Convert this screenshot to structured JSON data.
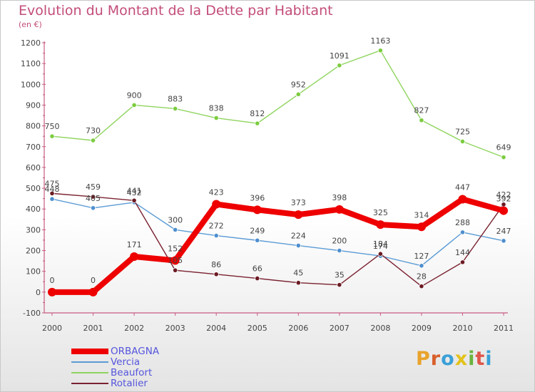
{
  "header": {
    "title": "Evolution du Montant de la Dette par Habitant",
    "subtitle": "(en €)"
  },
  "logo": {
    "text": "Proxiti",
    "colors": [
      "#e9a32b",
      "#d95f2b",
      "#3aa0d8",
      "#e3c21b",
      "#6cb33f",
      "#e0554a",
      "#3aa0d8"
    ]
  },
  "chart_data": {
    "type": "line",
    "title": "Evolution du Montant de la Dette par Habitant",
    "ylabel": "(en €)",
    "xlabel": "",
    "x": [
      "2000",
      "2001",
      "2002",
      "2003",
      "2004",
      "2005",
      "2006",
      "2007",
      "2008",
      "2009",
      "2010",
      "2011"
    ],
    "ylim": [
      -100,
      1200
    ],
    "yticks": [
      -100,
      0,
      100,
      200,
      300,
      400,
      500,
      600,
      700,
      800,
      900,
      1000,
      1100,
      1200
    ],
    "grid": false,
    "legend": "bottom-left",
    "series": [
      {
        "name": "ORBAGNA",
        "color": "#ee0000",
        "values": [
          0,
          0,
          171,
          152,
          423,
          396,
          373,
          398,
          325,
          314,
          447,
          392
        ]
      },
      {
        "name": "Vercia",
        "color": "#5b9bd5",
        "values": [
          448,
          405,
          432,
          300,
          272,
          249,
          224,
          200,
          174,
          127,
          288,
          247
        ]
      },
      {
        "name": "Beaufort",
        "color": "#8fd45e",
        "values": [
          750,
          730,
          900,
          883,
          838,
          812,
          952,
          1091,
          1163,
          827,
          725,
          649
        ]
      },
      {
        "name": "Rotalier",
        "color": "#7a2230",
        "values": [
          475,
          459,
          441,
          105,
          86,
          66,
          45,
          35,
          184,
          28,
          144,
          422
        ]
      }
    ]
  }
}
